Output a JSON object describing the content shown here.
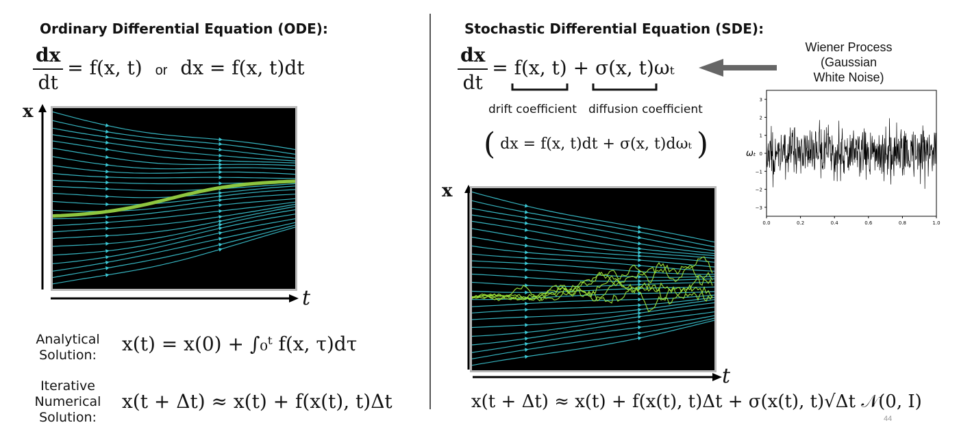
{
  "left": {
    "title": "Ordinary Differential Equation (ODE):",
    "ode_lhs_num": "dx",
    "ode_lhs_den": "dt",
    "ode_rhs": "= f(x, t)",
    "ode_or": "or",
    "ode_alt": "dx = f(x, t)dt",
    "axis_x": "x",
    "axis_t": "t",
    "analytical_label": [
      "Analytical",
      "Solution:"
    ],
    "analytical_eq": "x(t) = x(0) + ∫₀ᵗ f(x, τ)dτ",
    "iterative_label": [
      "Iterative",
      "Numerical",
      "Solution:"
    ],
    "iterative_eq": "x(t + Δt) ≈ x(t) + f(x(t), t)Δt"
  },
  "right": {
    "title": "Stochastic Differential Equation (SDE):",
    "sde_lhs_num": "dx",
    "sde_lhs_den": "dt",
    "sde_drift_term": "= f(x, t)",
    "sde_diffusion_term": "+ σ(x, t)ωₜ",
    "drift_label": "drift coefficient",
    "diffusion_label": "diffusion coefficient",
    "sde_alt": "dx = f(x, t)dt + σ(x, t)dωₜ",
    "axis_x": "x",
    "axis_t": "t",
    "update_eq": "x(t + Δt) ≈ x(t) + f(x(t), t)Δt + σ(x(t), t)√Δt 𝒩(0, I)"
  },
  "wiener": {
    "label": [
      "Wiener Process",
      "(Gaussian",
      "White Noise)"
    ],
    "ylabel": "ωₜ",
    "yticks": [
      "3",
      "2",
      "1",
      "0",
      "−1",
      "−2",
      "−3"
    ],
    "xticks": [
      "0.0",
      "0.2",
      "0.4",
      "0.6",
      "0.8",
      "1.0"
    ]
  },
  "page_number": "44",
  "colors": {
    "stream": "#3cc9d6",
    "ode_path": "#8ec63f",
    "sde_path": "#9be23a",
    "arrow": "#666666"
  }
}
